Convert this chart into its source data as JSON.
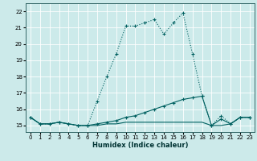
{
  "xlabel": "Humidex (Indice chaleur)",
  "bg_color": "#cceaea",
  "grid_color": "#ffffff",
  "line_color": "#006060",
  "xlim": [
    -0.5,
    23.5
  ],
  "ylim": [
    14.6,
    22.5
  ],
  "xticks": [
    0,
    1,
    2,
    3,
    4,
    5,
    6,
    7,
    8,
    9,
    10,
    11,
    12,
    13,
    14,
    15,
    16,
    17,
    18,
    19,
    20,
    21,
    22,
    23
  ],
  "yticks": [
    15,
    16,
    17,
    18,
    19,
    20,
    21,
    22
  ],
  "series1_x": [
    0,
    1,
    2,
    3,
    4,
    5,
    6,
    7,
    8,
    9,
    10,
    11,
    12,
    13,
    14,
    15,
    16,
    17,
    18,
    19,
    20,
    21,
    22,
    23
  ],
  "series1_y": [
    15.5,
    15.1,
    15.1,
    15.2,
    15.1,
    15.0,
    15.0,
    16.5,
    18.0,
    19.4,
    21.1,
    21.1,
    21.3,
    21.5,
    20.6,
    21.3,
    21.9,
    19.4,
    16.8,
    15.0,
    15.6,
    15.1,
    15.5,
    15.5
  ],
  "series2_x": [
    0,
    1,
    2,
    3,
    4,
    5,
    6,
    7,
    8,
    9,
    10,
    11,
    12,
    13,
    14,
    15,
    16,
    17,
    18,
    19,
    20,
    21,
    22,
    23
  ],
  "series2_y": [
    15.5,
    15.1,
    15.1,
    15.2,
    15.1,
    15.0,
    15.0,
    15.1,
    15.2,
    15.3,
    15.5,
    15.6,
    15.8,
    16.0,
    16.2,
    16.4,
    16.6,
    16.7,
    16.8,
    15.0,
    15.4,
    15.1,
    15.5,
    15.5
  ],
  "series3_x": [
    0,
    1,
    2,
    3,
    4,
    5,
    6,
    7,
    8,
    9,
    10,
    11,
    12,
    13,
    14,
    15,
    16,
    17,
    18,
    19,
    20,
    21,
    22,
    23
  ],
  "series3_y": [
    15.5,
    15.1,
    15.1,
    15.2,
    15.1,
    15.0,
    15.0,
    15.0,
    15.1,
    15.1,
    15.2,
    15.2,
    15.2,
    15.2,
    15.2,
    15.2,
    15.2,
    15.2,
    15.2,
    15.0,
    15.0,
    15.1,
    15.5,
    15.5
  ],
  "xlabel_fontsize": 6,
  "tick_fontsize": 5,
  "linewidth": 0.8,
  "markersize": 2
}
